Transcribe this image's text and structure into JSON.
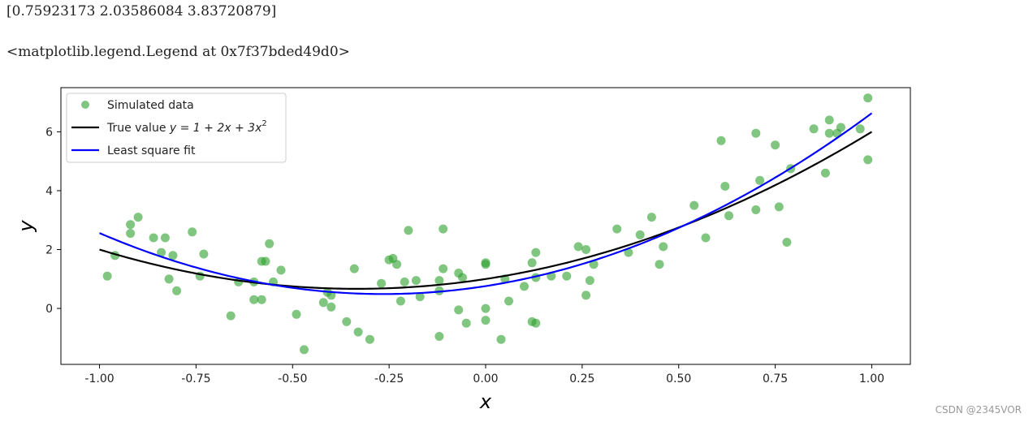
{
  "output": {
    "line1": "[0.75923173 2.03586084 3.83720879]",
    "line2": "<matplotlib.legend.Legend at 0x7f37bded49d0>"
  },
  "watermark": "CSDN @2345VOR",
  "chart_data": {
    "type": "scatter",
    "xlabel": "x",
    "ylabel": "y",
    "xlim": [
      -1.1,
      1.1
    ],
    "ylim": [
      -1.9,
      7.5
    ],
    "xticks": [
      -1.0,
      -0.75,
      -0.5,
      -0.25,
      0.0,
      0.25,
      0.5,
      0.75,
      1.0
    ],
    "xtick_labels": [
      "-1.00",
      "-0.75",
      "-0.50",
      "-0.25",
      "0.00",
      "0.25",
      "0.50",
      "0.75",
      "1.00"
    ],
    "yticks": [
      0,
      2,
      4,
      6
    ],
    "ytick_labels": [
      "0",
      "2",
      "4",
      "6"
    ],
    "legend_position": "upper-left",
    "series": [
      {
        "name": "Simulated data",
        "kind": "scatter",
        "color": "#2ca02c",
        "points": [
          [
            -0.98,
            1.1
          ],
          [
            -0.96,
            1.8
          ],
          [
            -0.92,
            2.85
          ],
          [
            -0.92,
            2.55
          ],
          [
            -0.9,
            3.1
          ],
          [
            -0.86,
            2.4
          ],
          [
            -0.84,
            1.9
          ],
          [
            -0.83,
            2.4
          ],
          [
            -0.82,
            1.0
          ],
          [
            -0.81,
            1.8
          ],
          [
            -0.8,
            0.6
          ],
          [
            -0.76,
            2.6
          ],
          [
            -0.74,
            1.1
          ],
          [
            -0.73,
            1.85
          ],
          [
            -0.66,
            -0.25
          ],
          [
            -0.64,
            0.9
          ],
          [
            -0.6,
            0.9
          ],
          [
            -0.6,
            0.3
          ],
          [
            -0.58,
            0.3
          ],
          [
            -0.58,
            1.6
          ],
          [
            -0.57,
            1.6
          ],
          [
            -0.56,
            2.2
          ],
          [
            -0.55,
            0.9
          ],
          [
            -0.53,
            1.3
          ],
          [
            -0.49,
            -0.2
          ],
          [
            -0.47,
            -1.4
          ],
          [
            -0.42,
            0.2
          ],
          [
            -0.41,
            0.55
          ],
          [
            -0.4,
            0.45
          ],
          [
            -0.4,
            0.05
          ],
          [
            -0.36,
            -0.45
          ],
          [
            -0.34,
            1.35
          ],
          [
            -0.33,
            -0.8
          ],
          [
            -0.3,
            -1.05
          ],
          [
            -0.27,
            0.85
          ],
          [
            -0.25,
            1.65
          ],
          [
            -0.24,
            1.7
          ],
          [
            -0.23,
            1.5
          ],
          [
            -0.22,
            0.25
          ],
          [
            -0.21,
            0.9
          ],
          [
            -0.2,
            2.65
          ],
          [
            -0.18,
            0.95
          ],
          [
            -0.17,
            0.4
          ],
          [
            -0.12,
            0.95
          ],
          [
            -0.12,
            0.6
          ],
          [
            -0.12,
            -0.95
          ],
          [
            -0.11,
            2.7
          ],
          [
            -0.11,
            1.35
          ],
          [
            -0.07,
            1.2
          ],
          [
            -0.07,
            -0.05
          ],
          [
            -0.06,
            1.05
          ],
          [
            -0.05,
            -0.5
          ],
          [
            0.0,
            1.5
          ],
          [
            0.0,
            1.55
          ],
          [
            0.0,
            0.0
          ],
          [
            0.0,
            -0.4
          ],
          [
            0.04,
            -1.05
          ],
          [
            0.05,
            1.0
          ],
          [
            0.06,
            0.25
          ],
          [
            0.1,
            0.75
          ],
          [
            0.12,
            -0.45
          ],
          [
            0.12,
            1.55
          ],
          [
            0.13,
            1.9
          ],
          [
            0.13,
            1.05
          ],
          [
            0.13,
            -0.5
          ],
          [
            0.17,
            1.1
          ],
          [
            0.21,
            1.1
          ],
          [
            0.24,
            2.1
          ],
          [
            0.26,
            2.0
          ],
          [
            0.26,
            0.45
          ],
          [
            0.27,
            0.95
          ],
          [
            0.28,
            1.5
          ],
          [
            0.34,
            2.7
          ],
          [
            0.37,
            1.9
          ],
          [
            0.4,
            2.5
          ],
          [
            0.43,
            3.1
          ],
          [
            0.45,
            1.5
          ],
          [
            0.46,
            2.1
          ],
          [
            0.54,
            3.5
          ],
          [
            0.57,
            2.4
          ],
          [
            0.61,
            5.7
          ],
          [
            0.62,
            4.15
          ],
          [
            0.63,
            3.15
          ],
          [
            0.7,
            5.95
          ],
          [
            0.7,
            3.35
          ],
          [
            0.71,
            4.35
          ],
          [
            0.75,
            5.55
          ],
          [
            0.76,
            3.45
          ],
          [
            0.78,
            2.25
          ],
          [
            0.79,
            4.75
          ],
          [
            0.85,
            6.1
          ],
          [
            0.88,
            4.6
          ],
          [
            0.89,
            6.4
          ],
          [
            0.89,
            5.95
          ],
          [
            0.91,
            5.95
          ],
          [
            0.92,
            6.15
          ],
          [
            0.97,
            6.1
          ],
          [
            0.99,
            5.05
          ],
          [
            0.99,
            7.15
          ]
        ]
      },
      {
        "name": "True value $y = 1 + 2x + 3x^2$",
        "kind": "line",
        "color": "#000000",
        "coefficients": [
          1,
          2,
          3
        ]
      },
      {
        "name": "Least square fit",
        "kind": "line",
        "color": "#0000ff",
        "coefficients": [
          0.75923173,
          2.03586084,
          3.83720879
        ]
      }
    ],
    "legend": {
      "entries": [
        {
          "label": "Simulated data",
          "kind": "marker",
          "color": "#2ca02c"
        },
        {
          "label_prefix": "True value ",
          "label_math": "y = 1 + 2x + 3x",
          "label_sup": "2",
          "kind": "line",
          "color": "#000000"
        },
        {
          "label": "Least square fit",
          "kind": "line",
          "color": "#0000ff"
        }
      ]
    }
  }
}
